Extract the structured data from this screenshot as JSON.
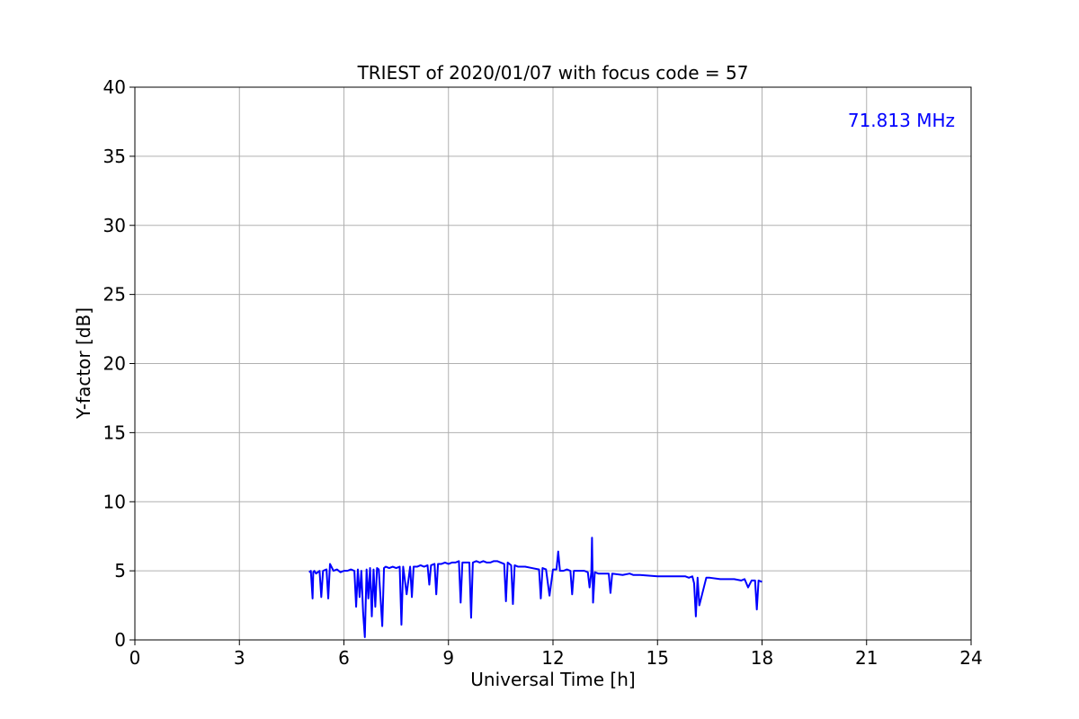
{
  "chart_data": {
    "type": "line",
    "title": "TRIEST of 2020/01/07 with focus code = 57",
    "xlabel": "Universal Time [h]",
    "ylabel": "Y-factor [dB]",
    "xlim": [
      0,
      24
    ],
    "ylim": [
      0,
      40
    ],
    "xticks": [
      0,
      3,
      6,
      9,
      12,
      15,
      18,
      21,
      24
    ],
    "yticks": [
      0,
      5,
      10,
      15,
      20,
      25,
      30,
      35,
      40
    ],
    "grid": true,
    "annotation": {
      "text": "71.813 MHz",
      "color": "#0000ff",
      "placement": "top-right"
    },
    "series": [
      {
        "color": "#0000ff",
        "x": [
          5.0,
          5.05,
          5.1,
          5.12,
          5.15,
          5.2,
          5.3,
          5.35,
          5.4,
          5.5,
          5.55,
          5.6,
          5.7,
          5.8,
          5.9,
          6.0,
          6.1,
          6.2,
          6.3,
          6.35,
          6.4,
          6.45,
          6.5,
          6.55,
          6.6,
          6.65,
          6.7,
          6.75,
          6.8,
          6.85,
          6.9,
          6.95,
          7.0,
          7.1,
          7.15,
          7.2,
          7.3,
          7.4,
          7.5,
          7.6,
          7.65,
          7.7,
          7.8,
          7.9,
          7.95,
          8.0,
          8.1,
          8.2,
          8.3,
          8.4,
          8.45,
          8.5,
          8.6,
          8.65,
          8.7,
          8.8,
          8.9,
          9.0,
          9.1,
          9.2,
          9.3,
          9.35,
          9.4,
          9.5,
          9.6,
          9.65,
          9.7,
          9.8,
          9.9,
          10.0,
          10.1,
          10.2,
          10.3,
          10.4,
          10.5,
          10.6,
          10.65,
          10.7,
          10.8,
          10.85,
          10.9,
          11.0,
          11.2,
          11.4,
          11.6,
          11.65,
          11.7,
          11.8,
          11.9,
          12.0,
          12.1,
          12.15,
          12.2,
          12.3,
          12.4,
          12.5,
          12.55,
          12.6,
          12.8,
          12.9,
          13.0,
          13.05,
          13.1,
          13.12,
          13.15,
          13.2,
          13.3,
          13.5,
          13.6,
          13.65,
          13.7,
          14.0,
          14.2,
          14.3,
          14.5,
          15.0,
          15.5,
          15.8,
          15.9,
          16.0,
          16.05,
          16.1,
          16.15,
          16.2,
          16.4,
          16.5,
          16.8,
          17.0,
          17.2,
          17.4,
          17.5,
          17.6,
          17.7,
          17.8,
          17.85,
          17.9,
          18.0
        ],
        "values": [
          4.9,
          5.0,
          3.0,
          4.9,
          5.0,
          4.8,
          5.0,
          3.1,
          5.0,
          5.1,
          3.0,
          5.5,
          5.0,
          5.1,
          4.9,
          5.0,
          5.0,
          5.1,
          5.0,
          2.4,
          5.1,
          3.1,
          5.0,
          2.0,
          0.2,
          5.1,
          3.0,
          5.2,
          1.7,
          5.1,
          2.4,
          5.2,
          5.1,
          1.0,
          5.2,
          5.3,
          5.2,
          5.3,
          5.2,
          5.3,
          1.1,
          5.3,
          3.3,
          5.3,
          3.1,
          5.3,
          5.3,
          5.4,
          5.3,
          5.4,
          4.0,
          5.4,
          5.5,
          3.3,
          5.5,
          5.5,
          5.6,
          5.5,
          5.6,
          5.6,
          5.7,
          2.7,
          5.6,
          5.6,
          5.6,
          1.6,
          5.6,
          5.7,
          5.6,
          5.7,
          5.6,
          5.6,
          5.7,
          5.7,
          5.6,
          5.5,
          2.8,
          5.6,
          5.4,
          2.6,
          5.4,
          5.3,
          5.3,
          5.2,
          5.1,
          3.0,
          5.2,
          5.1,
          3.2,
          5.1,
          5.1,
          6.4,
          5.0,
          5.0,
          5.1,
          5.0,
          3.3,
          5.0,
          5.0,
          5.0,
          4.9,
          3.8,
          4.9,
          7.4,
          2.7,
          4.9,
          4.8,
          4.8,
          4.8,
          3.4,
          4.8,
          4.7,
          4.8,
          4.7,
          4.7,
          4.6,
          4.6,
          4.6,
          4.5,
          4.6,
          4.1,
          1.7,
          4.5,
          2.5,
          4.5,
          4.5,
          4.4,
          4.4,
          4.4,
          4.3,
          4.4,
          3.8,
          4.3,
          4.3,
          2.2,
          4.3,
          4.2
        ]
      }
    ]
  }
}
